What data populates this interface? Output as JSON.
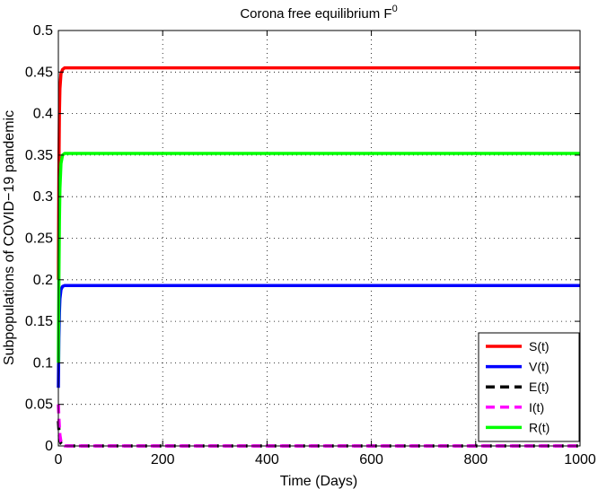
{
  "chart_data": {
    "type": "line",
    "title": "Corona free equilibrium F",
    "title_superscript": "0",
    "xlabel": "Time (Days)",
    "ylabel": "Subpopulations of COVID−19 pandemic",
    "xlim": [
      0,
      1000
    ],
    "ylim": [
      0,
      0.5
    ],
    "x_ticks": [
      0,
      200,
      400,
      600,
      800,
      1000
    ],
    "y_ticks": [
      0,
      0.05,
      0.1,
      0.15,
      0.2,
      0.25,
      0.3,
      0.35,
      0.4,
      0.45,
      0.5
    ],
    "x_tick_labels": [
      "0",
      "200",
      "400",
      "600",
      "800",
      "1000"
    ],
    "y_tick_labels": [
      "0",
      "0.05",
      "0.1",
      "0.15",
      "0.2",
      "0.25",
      "0.3",
      "0.35",
      "0.4",
      "0.45",
      "0.5"
    ],
    "grid": true,
    "legend_position": "bottom-right",
    "series": [
      {
        "name": "S(t)",
        "color": "#ff0000",
        "dash": "solid",
        "x": [
          0,
          1,
          2,
          3,
          5,
          8,
          12,
          20,
          1000
        ],
        "y": [
          0.2,
          0.33,
          0.4,
          0.43,
          0.448,
          0.453,
          0.455,
          0.455,
          0.455
        ]
      },
      {
        "name": "V(t)",
        "color": "#0000ff",
        "dash": "solid",
        "x": [
          0,
          1,
          2,
          3,
          5,
          8,
          12,
          20,
          1000
        ],
        "y": [
          0.07,
          0.13,
          0.16,
          0.177,
          0.188,
          0.192,
          0.193,
          0.193,
          0.193
        ]
      },
      {
        "name": "E(t)",
        "color": "#000000",
        "dash": "dashed",
        "x": [
          0,
          1,
          2,
          3,
          5,
          8,
          12,
          20,
          1000
        ],
        "y": [
          0.03,
          0.02,
          0.012,
          0.007,
          0.003,
          0.001,
          0.0,
          0.0,
          0.0
        ]
      },
      {
        "name": "I(t)",
        "color": "#ff00ff",
        "dash": "dashed",
        "x": [
          0,
          1,
          2,
          3,
          5,
          8,
          12,
          20,
          1000
        ],
        "y": [
          0.05,
          0.035,
          0.022,
          0.013,
          0.005,
          0.002,
          0.0,
          0.0,
          0.0
        ]
      },
      {
        "name": "R(t)",
        "color": "#00ff00",
        "dash": "solid",
        "x": [
          0,
          1,
          2,
          3,
          5,
          8,
          12,
          20,
          1000
        ],
        "y": [
          0.1,
          0.2,
          0.27,
          0.31,
          0.34,
          0.35,
          0.352,
          0.352,
          0.352
        ]
      }
    ]
  }
}
